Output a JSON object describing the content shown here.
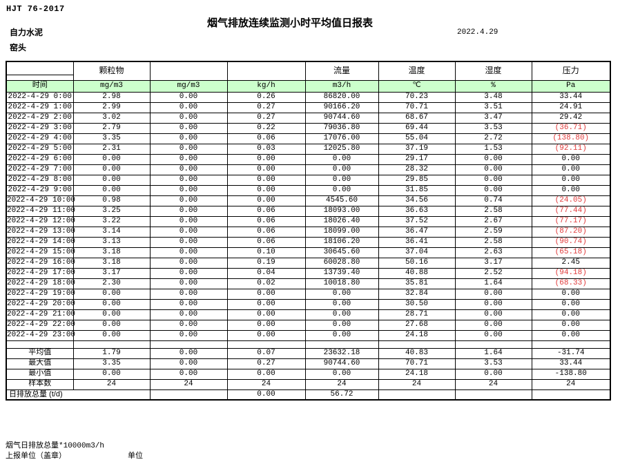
{
  "header": {
    "standard_code": "HJT  76-2017",
    "title": "烟气排放连续监测小时平均值日报表",
    "company": "自力水泥",
    "station": "窑头",
    "date": "2022.4.29"
  },
  "colors": {
    "units_row_bg": "#ccffcc",
    "negative_value": "#e03a3a",
    "text": "#000000"
  },
  "table": {
    "time_label": "时间",
    "group_headers": [
      "",
      "颗粒物",
      "",
      "",
      "流量",
      "温度",
      "湿度",
      "压力"
    ],
    "units": [
      "mg/m3",
      "mg/m3",
      "kg/h",
      "m3/h",
      "℃",
      "%",
      "Pa"
    ],
    "rows": [
      {
        "time": "2022-4-29 0:00",
        "values": [
          "2.98",
          "0.00",
          "0.26",
          "86820.00",
          "70.23",
          "3.48",
          "33.44"
        ]
      },
      {
        "time": "2022-4-29 1:00",
        "values": [
          "2.99",
          "0.00",
          "0.27",
          "90166.20",
          "70.71",
          "3.51",
          "24.91"
        ]
      },
      {
        "time": "2022-4-29 2:00",
        "values": [
          "3.02",
          "0.00",
          "0.27",
          "90744.60",
          "68.67",
          "3.47",
          "29.42"
        ]
      },
      {
        "time": "2022-4-29 3:00",
        "values": [
          "2.79",
          "0.00",
          "0.22",
          "79036.80",
          "69.44",
          "3.53",
          "(36.71)"
        ]
      },
      {
        "time": "2022-4-29 4:00",
        "values": [
          "3.35",
          "0.00",
          "0.06",
          "17076.00",
          "55.04",
          "2.72",
          "(138.80)"
        ]
      },
      {
        "time": "2022-4-29 5:00",
        "values": [
          "2.31",
          "0.00",
          "0.03",
          "12025.80",
          "37.19",
          "1.53",
          "(92.11)"
        ]
      },
      {
        "time": "2022-4-29 6:00",
        "values": [
          "0.00",
          "0.00",
          "0.00",
          "0.00",
          "29.17",
          "0.00",
          "0.00"
        ]
      },
      {
        "time": "2022-4-29 7:00",
        "values": [
          "0.00",
          "0.00",
          "0.00",
          "0.00",
          "28.32",
          "0.00",
          "0.00"
        ]
      },
      {
        "time": "2022-4-29 8:00",
        "values": [
          "0.00",
          "0.00",
          "0.00",
          "0.00",
          "29.85",
          "0.00",
          "0.00"
        ]
      },
      {
        "time": "2022-4-29 9:00",
        "values": [
          "0.00",
          "0.00",
          "0.00",
          "0.00",
          "31.85",
          "0.00",
          "0.00"
        ]
      },
      {
        "time": "2022-4-29 10:00",
        "values": [
          "0.98",
          "0.00",
          "0.00",
          "4545.60",
          "34.56",
          "0.74",
          "(24.05)"
        ]
      },
      {
        "time": "2022-4-29 11:00",
        "values": [
          "3.25",
          "0.00",
          "0.06",
          "18093.00",
          "36.63",
          "2.58",
          "(77.44)"
        ]
      },
      {
        "time": "2022-4-29 12:00",
        "values": [
          "3.22",
          "0.00",
          "0.06",
          "18026.40",
          "37.52",
          "2.67",
          "(77.17)"
        ]
      },
      {
        "time": "2022-4-29 13:00",
        "values": [
          "3.14",
          "0.00",
          "0.06",
          "18099.00",
          "36.47",
          "2.59",
          "(87.20)"
        ]
      },
      {
        "time": "2022-4-29 14:00",
        "values": [
          "3.13",
          "0.00",
          "0.06",
          "18106.20",
          "36.41",
          "2.58",
          "(90.74)"
        ]
      },
      {
        "time": "2022-4-29 15:00",
        "values": [
          "3.18",
          "0.00",
          "0.10",
          "30645.60",
          "37.04",
          "2.63",
          "(65.18)"
        ]
      },
      {
        "time": "2022-4-29 16:00",
        "values": [
          "3.18",
          "0.00",
          "0.19",
          "60028.80",
          "50.16",
          "3.17",
          "2.45"
        ]
      },
      {
        "time": "2022-4-29 17:00",
        "values": [
          "3.17",
          "0.00",
          "0.04",
          "13739.40",
          "40.88",
          "2.52",
          "(94.18)"
        ]
      },
      {
        "time": "2022-4-29 18:00",
        "values": [
          "2.30",
          "0.00",
          "0.02",
          "10018.80",
          "35.81",
          "1.64",
          "(68.33)"
        ]
      },
      {
        "time": "2022-4-29 19:00",
        "values": [
          "0.00",
          "0.00",
          "0.00",
          "0.00",
          "32.84",
          "0.00",
          "0.00"
        ]
      },
      {
        "time": "2022-4-29 20:00",
        "values": [
          "0.00",
          "0.00",
          "0.00",
          "0.00",
          "30.50",
          "0.00",
          "0.00"
        ]
      },
      {
        "time": "2022-4-29 21:00",
        "values": [
          "0.00",
          "0.00",
          "0.00",
          "0.00",
          "28.71",
          "0.00",
          "0.00"
        ]
      },
      {
        "time": "2022-4-29 22:00",
        "values": [
          "0.00",
          "0.00",
          "0.00",
          "0.00",
          "27.68",
          "0.00",
          "0.00"
        ]
      },
      {
        "time": "2022-4-29 23:00",
        "values": [
          "0.00",
          "0.00",
          "0.00",
          "0.00",
          "24.18",
          "0.00",
          "0.00"
        ]
      }
    ],
    "summary": [
      {
        "label": "平均值",
        "values": [
          "1.79",
          "0.00",
          "0.07",
          "23632.18",
          "40.83",
          "1.64",
          "-31.74"
        ]
      },
      {
        "label": "最大值",
        "values": [
          "3.35",
          "0.00",
          "0.27",
          "90744.60",
          "70.71",
          "3.53",
          "33.44"
        ]
      },
      {
        "label": "最小值",
        "values": [
          "0.00",
          "0.00",
          "0.00",
          "0.00",
          "24.18",
          "0.00",
          "-138.80"
        ]
      },
      {
        "label": "样本数",
        "values": [
          "24",
          "24",
          "24",
          "24",
          "24",
          "24",
          "24"
        ]
      }
    ],
    "total_row": {
      "label": "日排放总量 (t/d)",
      "values": [
        "",
        "0.00",
        "56.72",
        "",
        "",
        ""
      ]
    }
  },
  "footer": {
    "note": "烟气日排放总量*10000m3/h",
    "report_unit_label": "上报单位（盖章）",
    "unit_label": "单位"
  }
}
